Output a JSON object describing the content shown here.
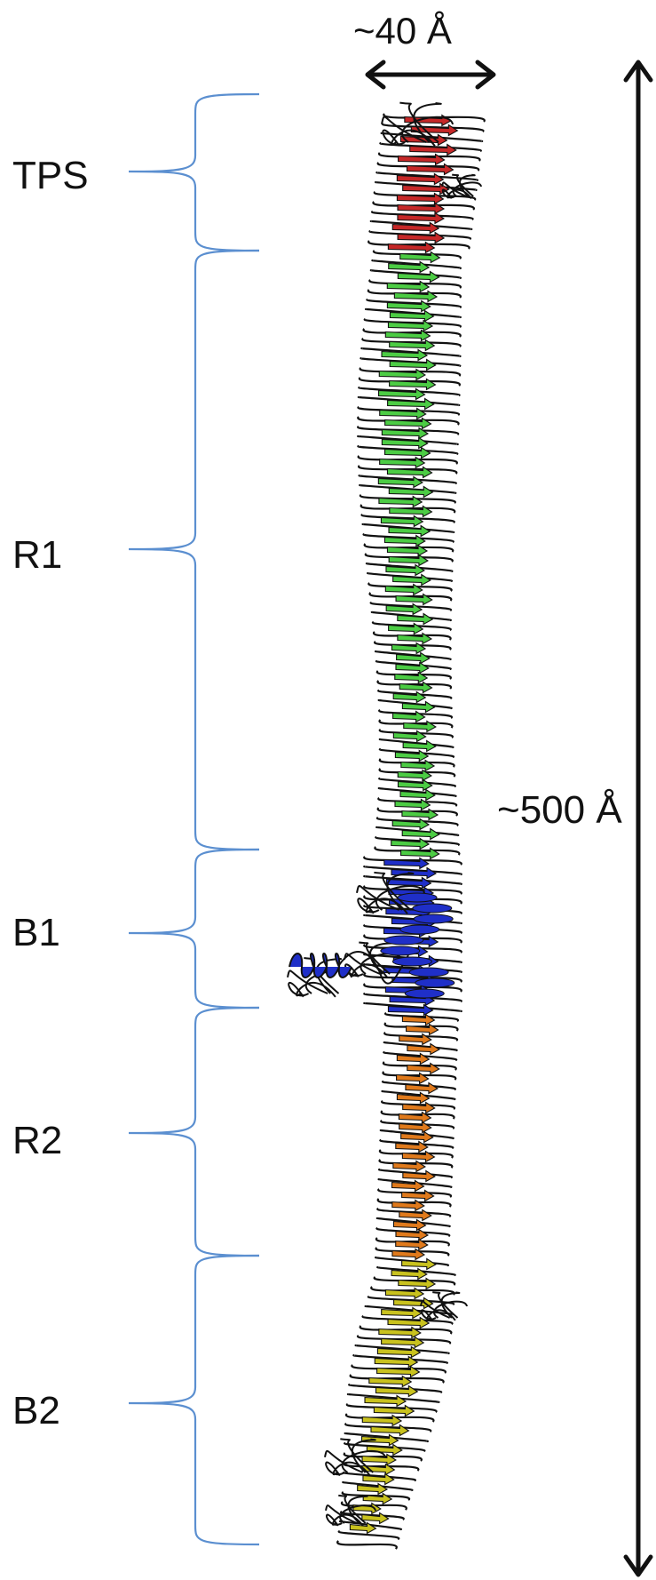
{
  "regions": [
    {
      "id": "tps",
      "label": "TPS",
      "color": "#c62828"
    },
    {
      "id": "r1",
      "label": "R1",
      "color": "#4ccc44"
    },
    {
      "id": "b1",
      "label": "B1",
      "color": "#1f2fc8"
    },
    {
      "id": "r2",
      "label": "R2",
      "color": "#e07a1c"
    },
    {
      "id": "b2",
      "label": "B2",
      "color": "#c9c21e"
    }
  ],
  "dimensions": {
    "width_label": "~40 Å",
    "length_label": "~500 Å"
  },
  "colors": {
    "brace": "#5b8fd0",
    "arrow": "#111111",
    "outline": "#111111"
  }
}
